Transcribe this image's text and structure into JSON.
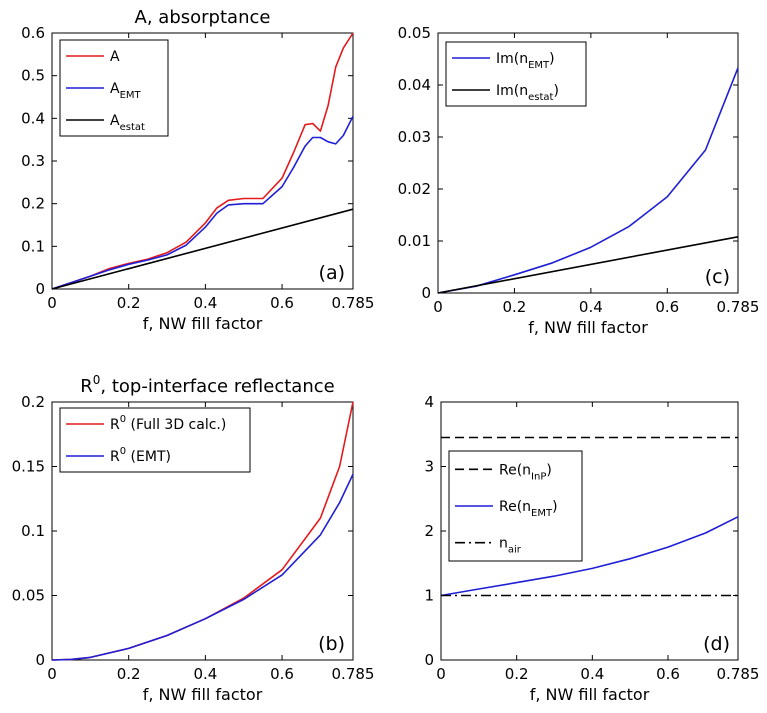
{
  "chart_data": [
    {
      "id": "a",
      "type": "line",
      "title": "A, absorptance",
      "xlabel": "f, NW fill factor",
      "panel_label": "(a)",
      "xlim": [
        0,
        0.785
      ],
      "ylim": [
        0,
        0.6
      ],
      "xticks": [
        0,
        0.2,
        0.4,
        0.6,
        0.785
      ],
      "xtick_labels": [
        "0",
        "0.2",
        "0.4",
        "0.6",
        "0.785"
      ],
      "yticks": [
        0,
        0.1,
        0.2,
        0.3,
        0.4,
        0.5,
        0.6
      ],
      "ytick_labels": [
        "0",
        "0.1",
        "0.2",
        "0.3",
        "0.4",
        "0.5",
        "0.6"
      ],
      "legend_position": "top-left",
      "series": [
        {
          "name": "A",
          "legend_main": "A",
          "legend_sub": "",
          "color": "#e41a1c",
          "dash": "solid",
          "x": [
            0,
            0.05,
            0.1,
            0.15,
            0.2,
            0.25,
            0.3,
            0.35,
            0.4,
            0.43,
            0.46,
            0.5,
            0.55,
            0.6,
            0.63,
            0.66,
            0.68,
            0.7,
            0.72,
            0.74,
            0.76,
            0.785
          ],
          "y": [
            0,
            0.015,
            0.03,
            0.048,
            0.06,
            0.07,
            0.085,
            0.11,
            0.155,
            0.19,
            0.208,
            0.212,
            0.212,
            0.26,
            0.32,
            0.385,
            0.388,
            0.37,
            0.43,
            0.52,
            0.565,
            0.6
          ]
        },
        {
          "name": "AEMT",
          "legend_main": "A",
          "legend_sub": "EMT",
          "color": "#1f1fd6",
          "dash": "solid",
          "x": [
            0,
            0.05,
            0.1,
            0.15,
            0.2,
            0.25,
            0.3,
            0.35,
            0.4,
            0.43,
            0.46,
            0.5,
            0.55,
            0.6,
            0.63,
            0.66,
            0.68,
            0.7,
            0.72,
            0.74,
            0.76,
            0.785
          ],
          "y": [
            0,
            0.015,
            0.03,
            0.045,
            0.058,
            0.068,
            0.08,
            0.103,
            0.145,
            0.178,
            0.197,
            0.2,
            0.2,
            0.24,
            0.285,
            0.335,
            0.355,
            0.355,
            0.345,
            0.34,
            0.36,
            0.405
          ]
        },
        {
          "name": "Aestat",
          "legend_main": "A",
          "legend_sub": "estat",
          "color": "#000000",
          "dash": "solid",
          "x": [
            0,
            0.785
          ],
          "y": [
            0,
            0.187
          ]
        }
      ]
    },
    {
      "id": "c",
      "type": "line",
      "title": "",
      "xlabel": "f, NW fill factor",
      "panel_label": "(c)",
      "xlim": [
        0,
        0.785
      ],
      "ylim": [
        0,
        0.05
      ],
      "xticks": [
        0,
        0.2,
        0.4,
        0.6,
        0.785
      ],
      "xtick_labels": [
        "0",
        "0.2",
        "0.4",
        "0.6",
        "0.785"
      ],
      "yticks": [
        0,
        0.01,
        0.02,
        0.03,
        0.04,
        0.05
      ],
      "ytick_labels": [
        "0",
        "0.01",
        "0.02",
        "0.03",
        "0.04",
        "0.05"
      ],
      "legend_position": "top-left",
      "series": [
        {
          "name": "Im(nEMT)",
          "legend_main": "Im(n",
          "legend_sub": "EMT",
          "legend_tail": ")",
          "color": "#1f1fd6",
          "dash": "solid",
          "x": [
            0,
            0.1,
            0.2,
            0.3,
            0.4,
            0.5,
            0.6,
            0.7,
            0.785
          ],
          "y": [
            0,
            0.0013,
            0.0035,
            0.0058,
            0.0088,
            0.0128,
            0.0185,
            0.0275,
            0.0433
          ]
        },
        {
          "name": "Im(nestat)",
          "legend_main": "Im(n",
          "legend_sub": "estat",
          "legend_tail": ")",
          "color": "#000000",
          "dash": "solid",
          "x": [
            0,
            0.785
          ],
          "y": [
            0,
            0.0108
          ]
        }
      ]
    },
    {
      "id": "b",
      "type": "line",
      "title": "R",
      "title_sup": "0",
      "title_tail": ", top-interface reflectance",
      "xlabel": "f, NW fill factor",
      "panel_label": "(b)",
      "xlim": [
        0,
        0.785
      ],
      "ylim": [
        0,
        0.2
      ],
      "xticks": [
        0,
        0.2,
        0.4,
        0.6,
        0.785
      ],
      "xtick_labels": [
        "0",
        "0.2",
        "0.4",
        "0.6",
        "0.785"
      ],
      "yticks": [
        0,
        0.05,
        0.1,
        0.15,
        0.2
      ],
      "ytick_labels": [
        "0",
        "0.05",
        "0.1",
        "0.15",
        "0.2"
      ],
      "legend_position": "top-left",
      "series": [
        {
          "name": "R0 (Full 3D calc.)",
          "legend_main": "R",
          "legend_sup": "0",
          "legend_tail": " (Full 3D calc.)",
          "color": "#e41a1c",
          "dash": "solid",
          "x": [
            0,
            0.05,
            0.1,
            0.2,
            0.3,
            0.4,
            0.5,
            0.6,
            0.7,
            0.75,
            0.785
          ],
          "y": [
            0,
            0.0005,
            0.002,
            0.009,
            0.019,
            0.032,
            0.048,
            0.07,
            0.11,
            0.15,
            0.2
          ]
        },
        {
          "name": "R0 (EMT)",
          "legend_main": "R",
          "legend_sup": "0",
          "legend_tail": " (EMT)",
          "color": "#1f1fd6",
          "dash": "solid",
          "x": [
            0,
            0.05,
            0.1,
            0.2,
            0.3,
            0.4,
            0.5,
            0.6,
            0.7,
            0.75,
            0.785
          ],
          "y": [
            0,
            0.0005,
            0.002,
            0.009,
            0.019,
            0.032,
            0.047,
            0.066,
            0.097,
            0.122,
            0.144
          ]
        }
      ]
    },
    {
      "id": "d",
      "type": "line",
      "title": "",
      "xlabel": "f, NW fill factor",
      "panel_label": "(d)",
      "xlim": [
        0,
        0.785
      ],
      "ylim": [
        0,
        4
      ],
      "xticks": [
        0,
        0.2,
        0.4,
        0.6,
        0.785
      ],
      "xtick_labels": [
        "0",
        "0.2",
        "0.4",
        "0.6",
        "0.785"
      ],
      "yticks": [
        0,
        1,
        2,
        3,
        4
      ],
      "ytick_labels": [
        "0",
        "1",
        "2",
        "3",
        "4"
      ],
      "legend_position": "middle-left",
      "series": [
        {
          "name": "Re(nInP)",
          "legend_main": "Re(n",
          "legend_sub": "InP",
          "legend_tail": ")",
          "color": "#000000",
          "dash": "dashed",
          "x": [
            0,
            0.785
          ],
          "y": [
            3.45,
            3.45
          ]
        },
        {
          "name": "Re(nEMT)",
          "legend_main": "Re(n",
          "legend_sub": "EMT",
          "legend_tail": ")",
          "color": "#1f1fd6",
          "dash": "solid",
          "x": [
            0,
            0.1,
            0.2,
            0.3,
            0.4,
            0.5,
            0.6,
            0.7,
            0.785
          ],
          "y": [
            1.0,
            1.1,
            1.2,
            1.3,
            1.42,
            1.57,
            1.75,
            1.97,
            2.22
          ]
        },
        {
          "name": "nair",
          "legend_main": "n",
          "legend_sub": "air",
          "legend_tail": "",
          "color": "#000000",
          "dash": "dashdot",
          "x": [
            0,
            0.785
          ],
          "y": [
            1.0,
            1.0
          ]
        }
      ]
    }
  ]
}
